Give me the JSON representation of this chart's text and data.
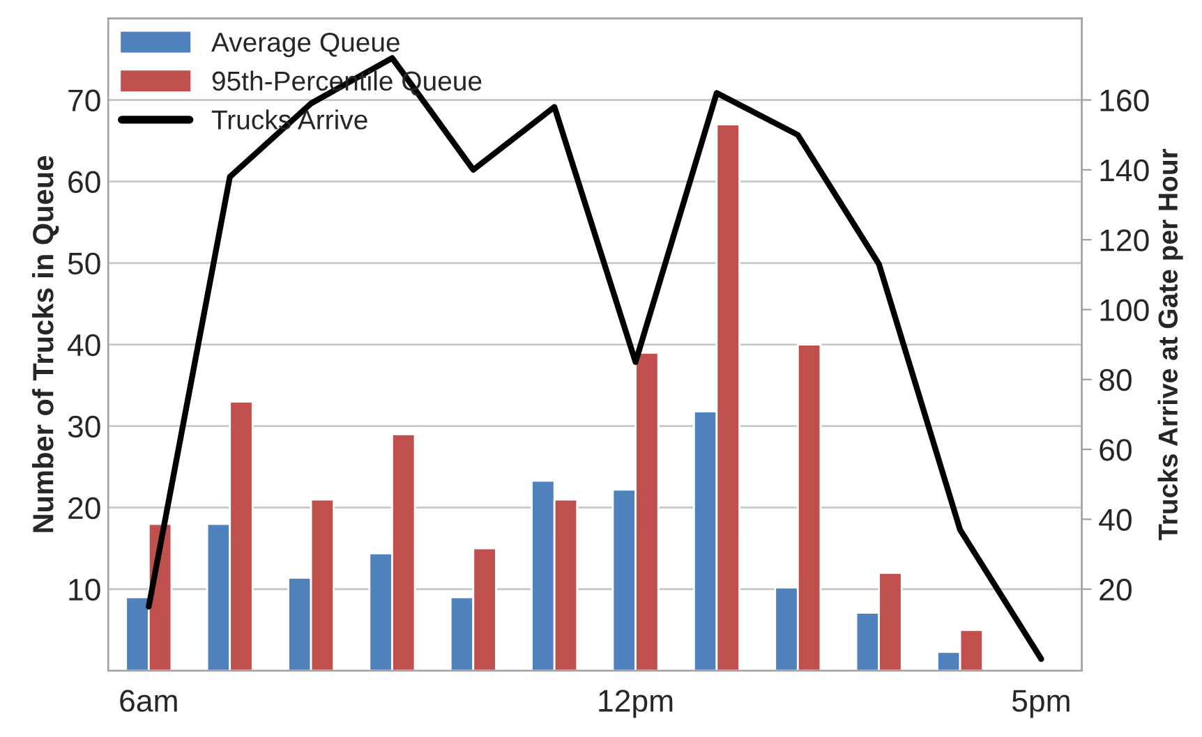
{
  "chart_data": {
    "type": "bar",
    "categories": [
      "6am",
      null,
      null,
      null,
      null,
      null,
      "12pm",
      null,
      null,
      null,
      null,
      "5pm"
    ],
    "ylabel": "Number of Trucks in Queue",
    "y2label": "Trucks Arrive at Gate per Hour",
    "ylim": [
      0,
      80
    ],
    "yticks": [
      10,
      20,
      30,
      40,
      50,
      60,
      70
    ],
    "y2lim": [
      -3.33,
      183.33
    ],
    "y2ticks": [
      20,
      40,
      60,
      80,
      100,
      120,
      140,
      160
    ],
    "series": [
      {
        "name": "Average Queue",
        "color": "#4f81bd",
        "values": [
          9,
          18,
          11.4,
          14.4,
          9,
          23.3,
          22.2,
          31.8,
          10.2,
          7.1,
          2.3,
          null
        ]
      },
      {
        "name": "95th-Percentile Queue",
        "color": "#c0504d",
        "values": [
          18,
          33,
          21,
          29,
          15,
          21,
          39,
          67,
          40,
          12,
          5,
          null
        ]
      },
      {
        "name": "Trucks Arrive",
        "type": "line",
        "axis": "y2",
        "color": "#000000",
        "values": [
          15,
          138,
          159,
          172,
          140,
          158,
          85,
          162,
          150,
          113,
          37,
          0
        ]
      }
    ],
    "grid": "y",
    "legend": "top left",
    "marker": "none",
    "line_style": "solid"
  }
}
